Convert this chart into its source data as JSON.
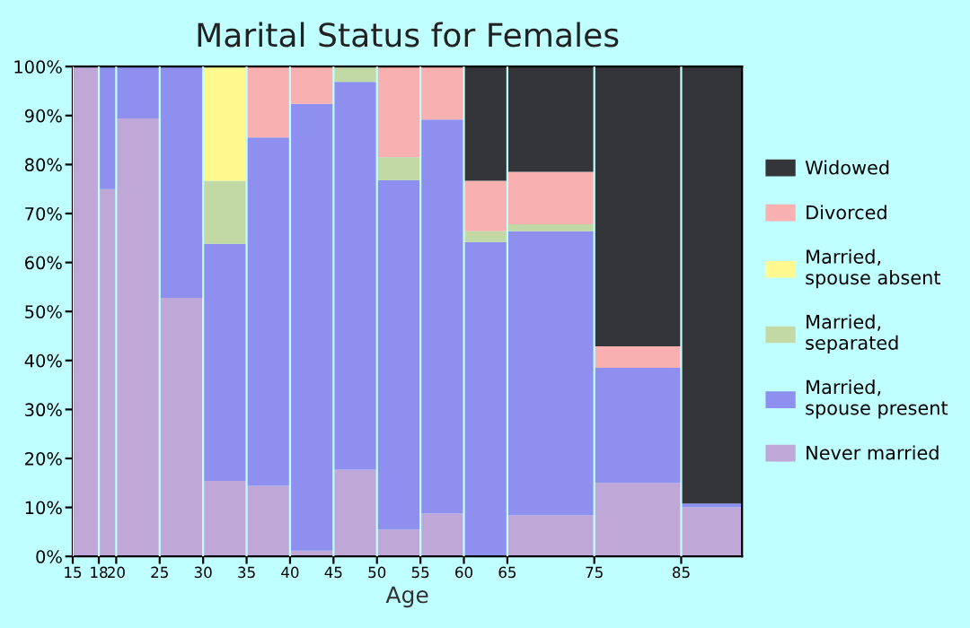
{
  "chart_data": {
    "type": "bar",
    "stacked": true,
    "title": "Marital Status for Females",
    "xlabel": "Age",
    "x": [
      16.5,
      19,
      22.5,
      27.5,
      32.5,
      37.5,
      42.5,
      47.5,
      52.5,
      57.5,
      62.5,
      70,
      80,
      88.5
    ],
    "xlim": [
      15,
      92
    ],
    "xticks": [
      15,
      18,
      20,
      25,
      30,
      35,
      40,
      45,
      50,
      55,
      60,
      65,
      75,
      85
    ],
    "ylim": [
      0,
      100
    ],
    "yticks": [
      {
        "value": 0,
        "label": "0%"
      },
      {
        "value": 10,
        "label": "10%"
      },
      {
        "value": 20,
        "label": "20%"
      },
      {
        "value": 30,
        "label": "30%"
      },
      {
        "value": 40,
        "label": "40%"
      },
      {
        "value": 50,
        "label": "50%"
      },
      {
        "value": 60,
        "label": "60%"
      },
      {
        "value": 70,
        "label": "70%"
      },
      {
        "value": 80,
        "label": "80%"
      },
      {
        "value": 90,
        "label": "90%"
      },
      {
        "value": 100,
        "label": "100%"
      }
    ],
    "legend": "right",
    "grid": "x",
    "series": [
      {
        "name": "Never married",
        "color": "#bfa8d8",
        "values": [
          100,
          75,
          89.4,
          52.8,
          15.4,
          14.4,
          1.2,
          17.7,
          5.5,
          8.8,
          null,
          8.4,
          15.0,
          10.0
        ]
      },
      {
        "name": "Married,\nspouse present",
        "color": "#8f8ff0",
        "values": [
          null,
          25,
          10.6,
          47.2,
          48.4,
          71.1,
          91.2,
          79.2,
          71.3,
          80.4,
          64.2,
          58.0,
          23.5,
          0.8
        ]
      },
      {
        "name": "Married,\nseparated",
        "color": "#c3d9a5",
        "values": [
          null,
          null,
          null,
          null,
          12.9,
          null,
          null,
          3.1,
          4.7,
          null,
          2.2,
          1.4,
          null,
          null
        ]
      },
      {
        "name": "Married,\nspouse absent",
        "color": "#fff98f",
        "values": [
          null,
          null,
          null,
          null,
          23.3,
          null,
          null,
          null,
          null,
          null,
          null,
          null,
          null,
          null
        ]
      },
      {
        "name": "Divorced",
        "color": "#f8b0b0",
        "values": [
          null,
          null,
          null,
          null,
          null,
          14.5,
          7.6,
          null,
          18.5,
          10.8,
          10.3,
          10.7,
          4.4,
          null
        ]
      },
      {
        "name": "Widowed",
        "color": "#343539",
        "values": [
          null,
          null,
          null,
          null,
          null,
          null,
          null,
          null,
          null,
          null,
          23.3,
          21.5,
          57.1,
          89.2
        ]
      }
    ]
  }
}
